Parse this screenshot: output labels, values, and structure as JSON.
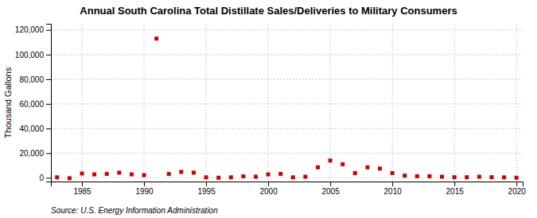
{
  "chart_data": {
    "type": "scatter",
    "title": "Annual South Carolina Total Distillate Sales/Deliveries to Military Consumers",
    "ylabel": "Thousand Gallons",
    "source": "Source: U.S. Energy Information Administration",
    "x": [
      1983,
      1984,
      1985,
      1986,
      1987,
      1988,
      1989,
      1990,
      1991,
      1992,
      1993,
      1994,
      1995,
      1996,
      1997,
      1998,
      1999,
      2000,
      2001,
      2002,
      2003,
      2004,
      2005,
      2006,
      2007,
      2008,
      2009,
      2010,
      2011,
      2012,
      2013,
      2014,
      2015,
      2016,
      2017,
      2018,
      2019,
      2020
    ],
    "values": [
      400,
      -300,
      3500,
      2800,
      3200,
      4200,
      2800,
      2200,
      113000,
      3200,
      4800,
      4200,
      400,
      100,
      400,
      1200,
      900,
      2800,
      3200,
      400,
      900,
      8500,
      14000,
      11000,
      3800,
      8500,
      7500,
      3800,
      1800,
      1300,
      1300,
      900,
      500,
      500,
      900,
      500,
      400,
      100
    ],
    "color": "#cc0000",
    "marker": "square",
    "xlim": [
      1982.5,
      2020.5
    ],
    "ylim": [
      -3000,
      125000
    ],
    "xticks": [
      1985,
      1990,
      1995,
      2000,
      2005,
      2010,
      2015,
      2020
    ],
    "yticks": [
      0,
      {
        "value": 20000,
        "label": "20,000"
      },
      {
        "value": 40000,
        "label": "40,000"
      },
      {
        "value": 60000,
        "label": "60,000"
      },
      {
        "value": 80000,
        "label": "80,000"
      },
      {
        "value": 100000,
        "label": "100,000"
      },
      {
        "value": 120000,
        "label": "120,000"
      }
    ],
    "grid": true
  }
}
